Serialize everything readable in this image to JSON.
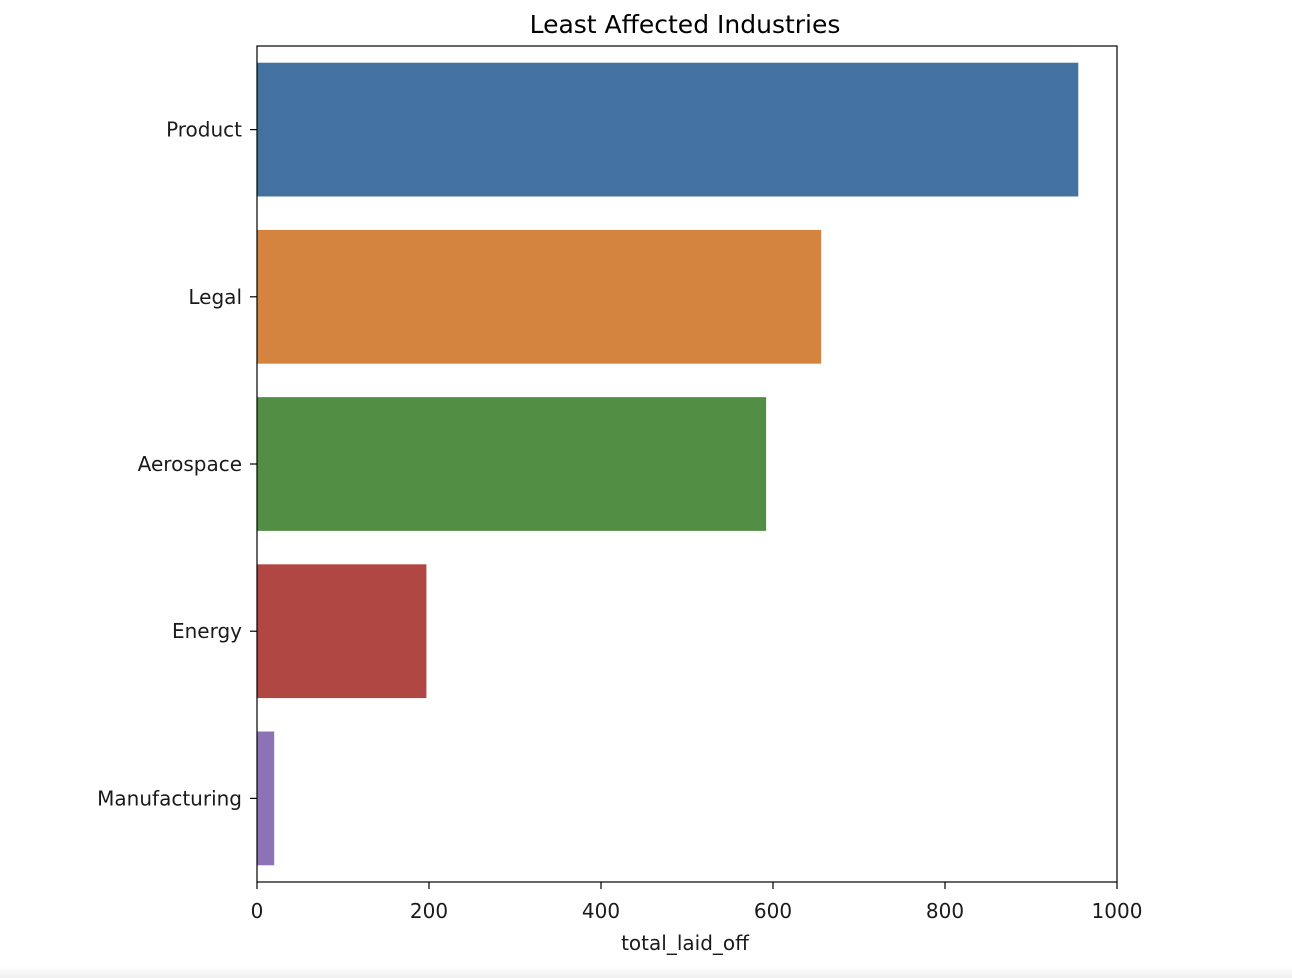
{
  "chart_data": {
    "type": "bar",
    "orientation": "horizontal",
    "title": "Least Affected Industries",
    "xlabel": "total_laid_off",
    "ylabel": "",
    "categories": [
      "Product",
      "Legal",
      "Aerospace",
      "Energy",
      "Manufacturing"
    ],
    "values": [
      955,
      656,
      592,
      197,
      20
    ],
    "colors": [
      "#4472a0",
      "#d4843f",
      "#528f45",
      "#b04743",
      "#8d72b5"
    ],
    "xlim": [
      0,
      1000
    ],
    "xticks": [
      0,
      200,
      400,
      600,
      800,
      1000
    ],
    "xtick_labels": [
      "0",
      "200",
      "400",
      "600",
      "800",
      "1000"
    ],
    "grid": false,
    "legend": "none"
  }
}
